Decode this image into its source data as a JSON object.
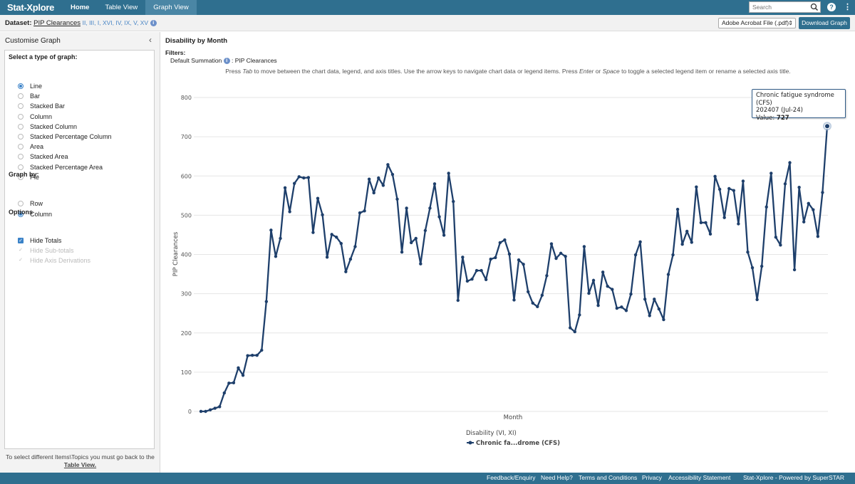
{
  "header": {
    "logo": "Stat-Xplore",
    "tabs": [
      {
        "label": "Home"
      },
      {
        "label": "Table View"
      },
      {
        "label": "Graph View"
      }
    ],
    "search_placeholder": "Search"
  },
  "dataset": {
    "label": "Dataset:",
    "name": "PIP Clearances",
    "codes": "II, III, I, XVI, IV, IX, V, XV",
    "format": "Adobe Acrobat File (.pdf)",
    "download": "Download Graph"
  },
  "sidebar": {
    "title": "Customise Graph",
    "type_title": "Select a type of graph:",
    "types": [
      "Line",
      "Bar",
      "Stacked Bar",
      "Column",
      "Stacked Column",
      "Stacked Percentage Column",
      "Area",
      "Stacked Area",
      "Stacked Percentage Area",
      "Pie"
    ],
    "selected_type": "Line",
    "graphby_title": "Graph by:",
    "graphby": [
      "Row",
      "Column"
    ],
    "selected_graphby": "Column",
    "options_title": "Options",
    "options": [
      {
        "label": "Hide Totals",
        "checked": true,
        "disabled": false
      },
      {
        "label": "Hide Sub-totals",
        "checked": true,
        "disabled": true
      },
      {
        "label": "Hide Axis Derivations",
        "checked": true,
        "disabled": true
      }
    ],
    "note_line1": "To select different Items\\Topics you must go back to the",
    "note_link": "Table View."
  },
  "main": {
    "title": "Disability by Month",
    "filters_label": "Filters:",
    "filter_name": "Default Summation",
    "filter_value": ": PIP Clearances",
    "instructions_prefix": "Press ",
    "instructions_tab": "Tab",
    "instructions_mid": " to move between the chart data, legend, and axis titles. Use the arrow keys to navigate chart data or legend items. Press ",
    "instructions_enter": "Enter",
    "instructions_or": " or ",
    "instructions_space": "Space",
    "instructions_end": " to toggle a selected legend item or rename a selected axis title."
  },
  "tooltip": {
    "series": "Chronic fatigue syndrome (CFS)",
    "point": "202407 (Jul-24)",
    "value_label": "Value: ",
    "value": "727"
  },
  "chart_data": {
    "type": "line",
    "xlabel": "Month",
    "ylabel": "PIP Clearances",
    "legend_title": "Disability (VI, XI)",
    "ylim": [
      0,
      800
    ],
    "yticks": [
      0,
      100,
      200,
      300,
      400,
      500,
      600,
      700,
      800
    ],
    "grid": true,
    "legend_position": "bottom",
    "series": [
      {
        "name": "Chronic fa...drome (CFS)",
        "color": "#1e3f6b",
        "values": [
          0,
          0,
          4,
          8,
          12,
          47,
          72,
          73,
          111,
          92,
          142,
          143,
          143,
          156,
          280,
          462,
          395,
          441,
          570,
          509,
          581,
          598,
          595,
          596,
          456,
          543,
          501,
          393,
          451,
          444,
          428,
          356,
          388,
          420,
          506,
          511,
          592,
          557,
          595,
          576,
          629,
          604,
          541,
          406,
          518,
          430,
          441,
          376,
          461,
          518,
          580,
          496,
          449,
          607,
          535,
          283,
          393,
          332,
          337,
          359,
          359,
          336,
          388,
          392,
          430,
          437,
          401,
          284,
          386,
          375,
          305,
          276,
          267,
          296,
          346,
          427,
          390,
          403,
          395,
          213,
          203,
          246,
          420,
          301,
          334,
          270,
          355,
          319,
          311,
          263,
          266,
          257,
          299,
          399,
          432,
          286,
          244,
          286,
          261,
          234,
          349,
          399,
          515,
          426,
          459,
          431,
          572,
          481,
          481,
          452,
          599,
          566,
          494,
          568,
          563,
          478,
          587,
          406,
          366,
          285,
          370,
          521,
          607,
          444,
          424,
          580,
          634,
          361,
          571,
          483,
          530,
          514,
          446,
          558,
          727
        ]
      }
    ]
  },
  "footer": {
    "links": [
      "Feedback/Enquiry",
      "Need Help?",
      "Terms and Conditions",
      "Privacy",
      "Accessibility Statement"
    ],
    "powered": "Stat-Xplore - Powered by SuperSTAR"
  }
}
